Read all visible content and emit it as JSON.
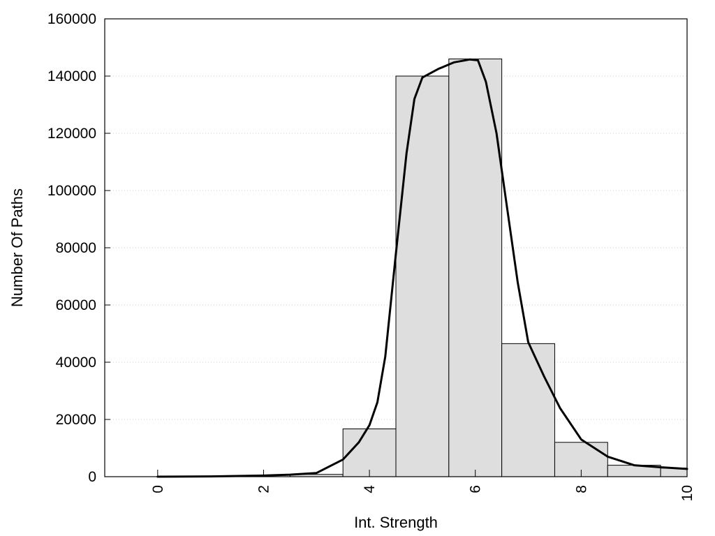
{
  "chart_data": {
    "type": "bar",
    "title": "",
    "xlabel": "Int. Strength",
    "ylabel": "Number Of Paths",
    "xlim": [
      -1,
      10
    ],
    "ylim": [
      0,
      160000
    ],
    "x_ticks": [
      0,
      2,
      4,
      6,
      8,
      10
    ],
    "x_tick_labels": [
      "0",
      "2",
      "4",
      "6",
      "8",
      "10"
    ],
    "y_ticks": [
      0,
      20000,
      40000,
      60000,
      80000,
      100000,
      120000,
      140000,
      160000
    ],
    "y_tick_labels": [
      "0",
      "20000",
      "40000",
      "60000",
      "80000",
      "100000",
      "120000",
      "140000",
      "160000"
    ],
    "grid": "horizontal dotted",
    "colors": {
      "bar_fill": "#dedede",
      "bar_stroke": "#000000",
      "curve": "#000000",
      "grid": "#cccccc"
    },
    "bars": {
      "categories": [
        0,
        1,
        2,
        3,
        4,
        5,
        6,
        7,
        8,
        9,
        10
      ],
      "values": [
        0,
        0,
        0,
        800,
        16700,
        140000,
        146000,
        46500,
        12000,
        4000,
        3000
      ]
    },
    "curve": {
      "x": [
        0,
        1,
        2,
        2.5,
        3,
        3.5,
        3.8,
        4,
        4.15,
        4.3,
        4.5,
        4.7,
        4.85,
        5,
        5.3,
        5.6,
        5.9,
        6.05,
        6.2,
        6.4,
        6.6,
        6.8,
        7,
        7.3,
        7.6,
        8,
        8.5,
        9,
        9.5,
        10
      ],
      "y": [
        0,
        100,
        400,
        700,
        1300,
        6000,
        12000,
        18000,
        26000,
        42000,
        78000,
        113000,
        132000,
        139500,
        142500,
        144800,
        145800,
        145500,
        138000,
        120000,
        94000,
        68000,
        47000,
        35000,
        24000,
        13000,
        7000,
        4000,
        3300,
        2700
      ]
    }
  }
}
